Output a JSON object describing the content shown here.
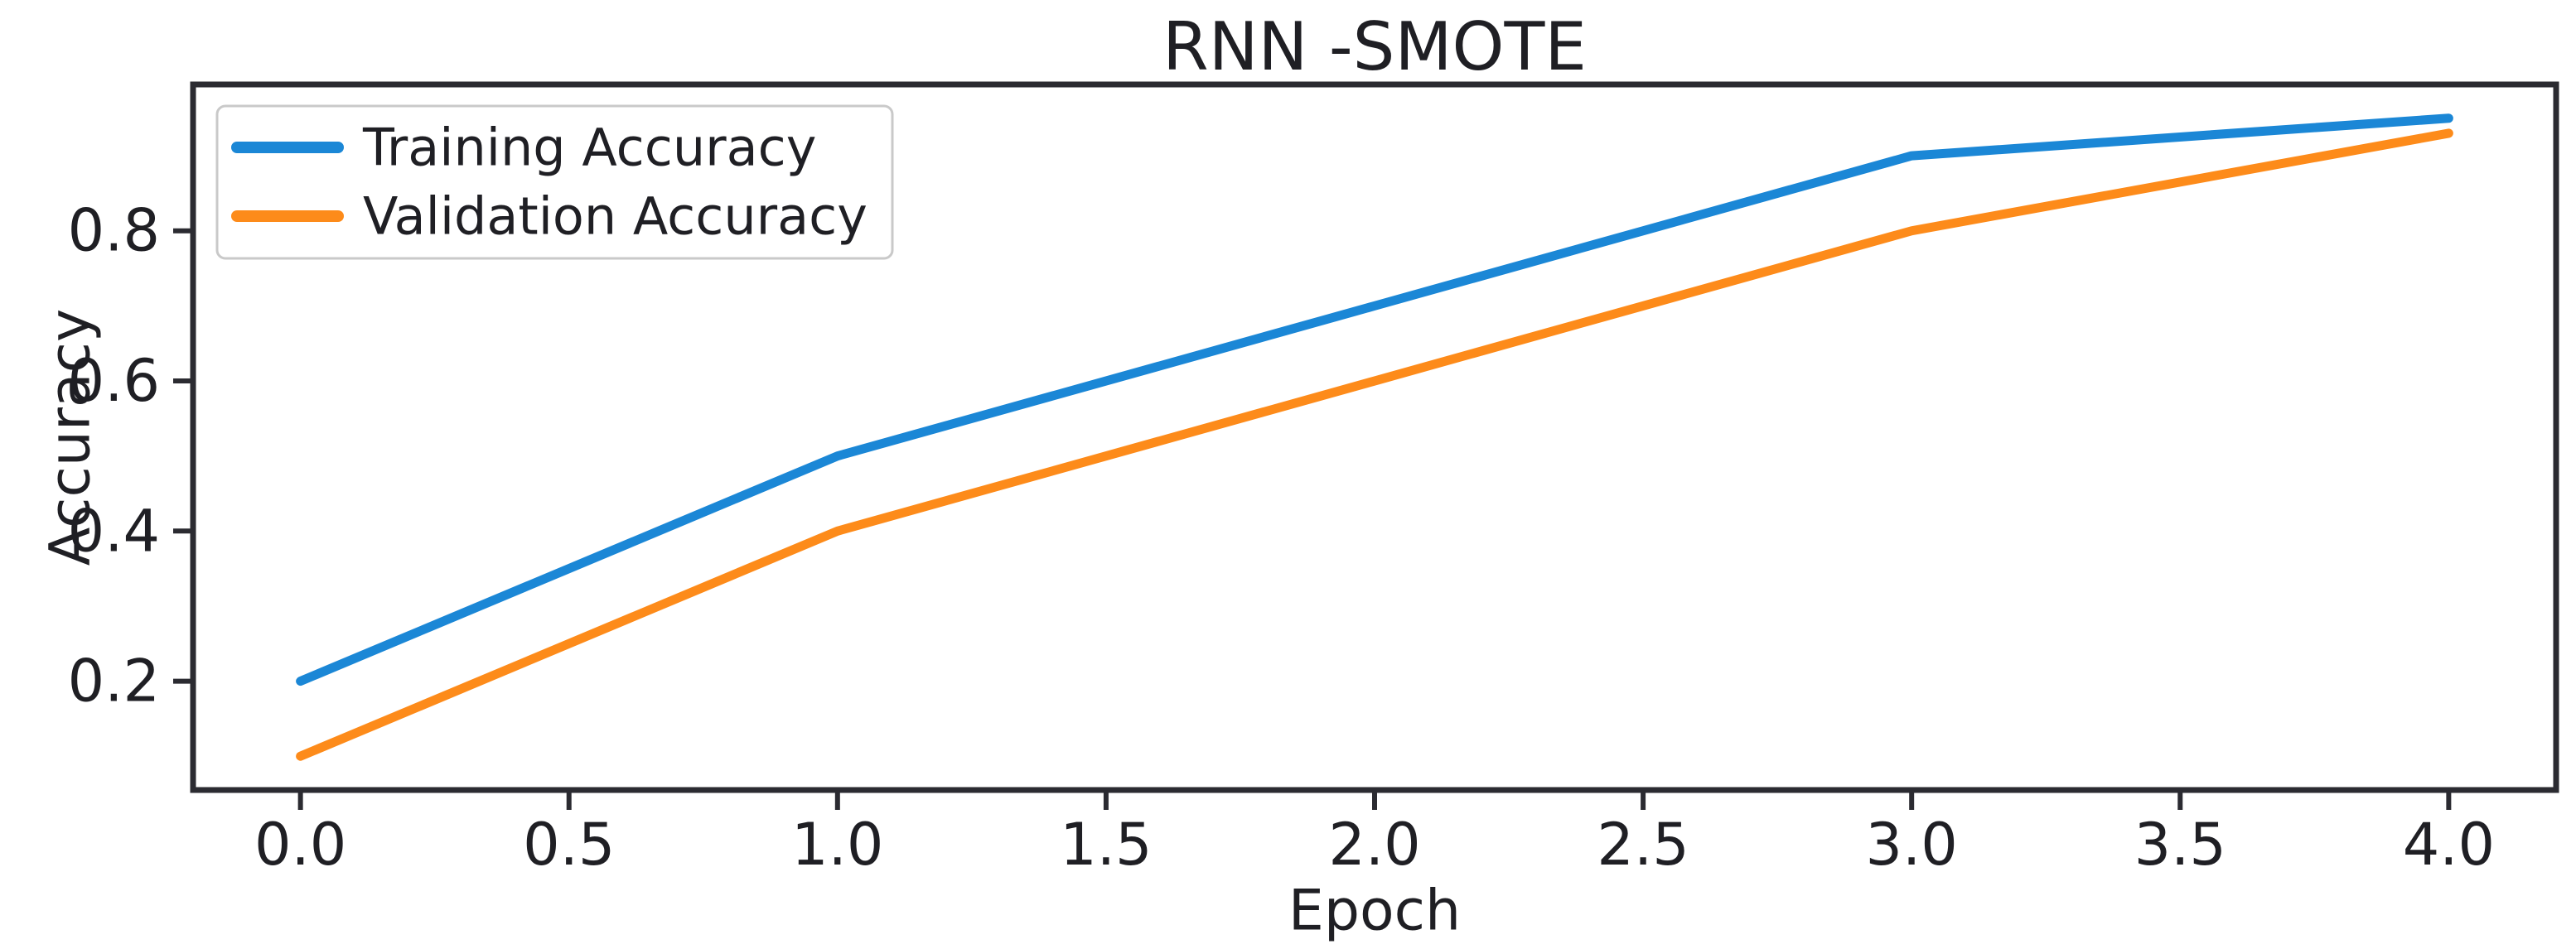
{
  "chart_data": {
    "type": "line",
    "title": "RNN -SMOTE",
    "xlabel": "Epoch",
    "ylabel": "Accuracy",
    "x": [
      0,
      1,
      2,
      3,
      4
    ],
    "series": [
      {
        "name": "Training Accuracy",
        "color": "#1b87d6",
        "values": [
          0.2,
          0.5,
          0.7,
          0.9,
          0.95
        ]
      },
      {
        "name": "Validation Accuracy",
        "color": "#fd8b1a",
        "values": [
          0.1,
          0.4,
          0.6,
          0.8,
          0.93
        ]
      }
    ],
    "xticks": {
      "values": [
        0,
        0.5,
        1,
        1.5,
        2,
        2.5,
        3,
        3.5,
        4
      ],
      "labels": [
        "0.0",
        "0.5",
        "1.0",
        "1.5",
        "2.0",
        "2.5",
        "3.0",
        "3.5",
        "4.0"
      ]
    },
    "yticks": {
      "values": [
        0.2,
        0.4,
        0.6,
        0.8
      ],
      "labels": [
        "0.2",
        "0.4",
        "0.6",
        "0.8"
      ]
    },
    "xlim": [
      -0.2,
      4.2
    ],
    "ylim": [
      0.055,
      0.995
    ],
    "grid": false,
    "legend_position": "upper left",
    "colors": {
      "frame": "#2b2b31",
      "text": "#1f1f24",
      "background": "#ffffff",
      "legend_border": "#c9c9c9"
    }
  }
}
